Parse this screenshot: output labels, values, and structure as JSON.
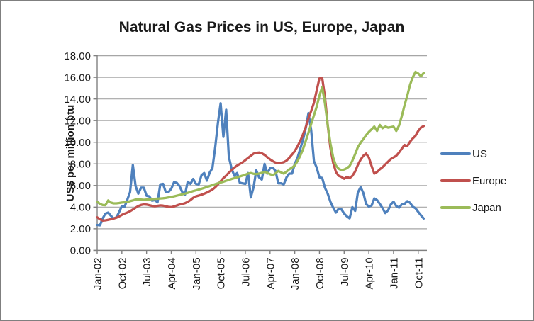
{
  "chart_data": {
    "type": "line",
    "title": "Natural Gas Prices in US, Europe, Japan",
    "xlabel": "",
    "ylabel": "US$ per million btu",
    "ylim": [
      0,
      18
    ],
    "y_tick_step": 2,
    "y_tick_labels": [
      "0.00",
      "2.00",
      "4.00",
      "6.00",
      "8.00",
      "10.00",
      "12.00",
      "14.00",
      "16.00",
      "18.00"
    ],
    "x_frequency": "monthly",
    "x_start": "Jan-02",
    "x_end": "Dec-11",
    "x_tick_labels": [
      "Jan-02",
      "Oct-02",
      "Jul-03",
      "Apr-04",
      "Jan-05",
      "Oct-05",
      "Jul-06",
      "Apr-07",
      "Jan-08",
      "Oct-08",
      "Jul-09",
      "Apr-10",
      "Jan-11",
      "Oct-11"
    ],
    "x_tick_month_indices": [
      0,
      9,
      18,
      27,
      36,
      45,
      54,
      63,
      72,
      81,
      90,
      99,
      108,
      117
    ],
    "grid": "horizontal",
    "legend_position": "right",
    "gridline_color": "#a6a6a6",
    "axis_color": "#808080",
    "series": [
      {
        "name": "US",
        "color": "#4f81bd",
        "values": [
          2.35,
          2.32,
          2.95,
          3.4,
          3.5,
          3.2,
          2.95,
          3.05,
          3.55,
          4.1,
          4.05,
          4.7,
          5.4,
          7.9,
          5.95,
          5.25,
          5.8,
          5.8,
          5.05,
          5.0,
          4.6,
          4.65,
          4.45,
          6.1,
          6.15,
          5.4,
          5.4,
          5.7,
          6.3,
          6.25,
          5.95,
          5.4,
          5.15,
          6.35,
          6.15,
          6.6,
          6.15,
          6.1,
          6.95,
          7.15,
          6.45,
          7.2,
          7.6,
          9.5,
          11.8,
          13.6,
          10.5,
          13.0,
          8.65,
          7.55,
          6.9,
          7.15,
          6.25,
          6.2,
          6.15,
          7.15,
          4.9,
          5.85,
          7.4,
          6.75,
          6.55,
          8.0,
          7.1,
          7.6,
          7.65,
          7.35,
          6.2,
          6.2,
          6.1,
          6.75,
          7.1,
          7.1,
          8.0,
          8.55,
          9.4,
          10.2,
          11.3,
          12.7,
          11.1,
          8.25,
          7.65,
          6.75,
          6.7,
          5.8,
          5.25,
          4.5,
          3.95,
          3.5,
          3.85,
          3.8,
          3.4,
          3.15,
          2.97,
          4.0,
          3.65,
          5.35,
          5.85,
          5.3,
          4.3,
          4.05,
          4.15,
          4.8,
          4.65,
          4.3,
          3.9,
          3.45,
          3.7,
          4.25,
          4.5,
          4.1,
          3.95,
          4.25,
          4.3,
          4.55,
          4.4,
          4.05,
          3.9,
          3.55,
          3.25,
          2.95
        ]
      },
      {
        "name": "Europe",
        "color": "#c0504d",
        "values": [
          3.05,
          2.88,
          2.76,
          2.78,
          2.83,
          2.88,
          2.95,
          3.02,
          3.14,
          3.28,
          3.4,
          3.5,
          3.62,
          3.78,
          3.95,
          4.1,
          4.2,
          4.25,
          4.23,
          4.18,
          4.12,
          4.08,
          4.12,
          4.16,
          4.14,
          4.08,
          4.02,
          4.0,
          4.06,
          4.15,
          4.24,
          4.3,
          4.36,
          4.48,
          4.66,
          4.86,
          5.0,
          5.07,
          5.15,
          5.24,
          5.35,
          5.48,
          5.62,
          5.83,
          6.1,
          6.4,
          6.68,
          6.92,
          7.18,
          7.42,
          7.65,
          7.85,
          8.0,
          8.15,
          8.35,
          8.55,
          8.75,
          8.95,
          9.02,
          9.05,
          8.98,
          8.82,
          8.62,
          8.42,
          8.25,
          8.12,
          8.06,
          8.1,
          8.16,
          8.3,
          8.56,
          8.86,
          9.18,
          9.62,
          10.12,
          10.72,
          11.4,
          12.2,
          12.9,
          13.65,
          14.8,
          15.9,
          15.95,
          14.2,
          11.6,
          9.5,
          8.1,
          7.25,
          6.9,
          6.8,
          6.62,
          6.8,
          6.68,
          6.9,
          7.3,
          7.9,
          8.4,
          8.75,
          8.95,
          8.6,
          7.8,
          7.1,
          7.25,
          7.5,
          7.7,
          7.95,
          8.2,
          8.45,
          8.6,
          8.75,
          9.05,
          9.4,
          9.75,
          9.65,
          10.05,
          10.35,
          10.6,
          11.05,
          11.35,
          11.5
        ]
      },
      {
        "name": "Japan",
        "color": "#9bbb59",
        "values": [
          4.5,
          4.3,
          4.2,
          4.18,
          4.62,
          4.42,
          4.35,
          4.35,
          4.38,
          4.42,
          4.45,
          4.48,
          4.55,
          4.62,
          4.7,
          4.73,
          4.7,
          4.68,
          4.7,
          4.72,
          4.74,
          4.76,
          4.78,
          4.8,
          4.82,
          4.85,
          4.9,
          4.94,
          5.0,
          5.06,
          5.12,
          5.18,
          5.25,
          5.32,
          5.4,
          5.48,
          5.55,
          5.62,
          5.7,
          5.78,
          5.86,
          5.95,
          6.04,
          6.12,
          6.2,
          6.28,
          6.35,
          6.44,
          6.52,
          6.6,
          6.68,
          6.76,
          6.84,
          6.92,
          7.0,
          7.1,
          7.15,
          7.08,
          7.05,
          7.1,
          7.18,
          7.28,
          7.18,
          7.05,
          6.95,
          7.12,
          7.35,
          7.22,
          7.1,
          7.28,
          7.5,
          7.65,
          7.85,
          8.25,
          8.75,
          9.35,
          10.1,
          10.9,
          11.7,
          12.5,
          13.3,
          14.3,
          15.1,
          13.6,
          11.6,
          9.9,
          8.6,
          7.85,
          7.55,
          7.42,
          7.48,
          7.6,
          7.8,
          8.3,
          8.9,
          9.55,
          9.95,
          10.3,
          10.65,
          10.95,
          11.2,
          11.45,
          11.05,
          11.6,
          11.3,
          11.45,
          11.35,
          11.4,
          11.45,
          11.05,
          11.55,
          12.4,
          13.4,
          14.3,
          15.3,
          16.0,
          16.5,
          16.35,
          16.1,
          16.4
        ]
      }
    ]
  },
  "legend": {
    "items": [
      {
        "label": "US",
        "color": "#4f81bd"
      },
      {
        "label": "Europe",
        "color": "#c0504d"
      },
      {
        "label": "Japan",
        "color": "#9bbb59"
      }
    ]
  }
}
